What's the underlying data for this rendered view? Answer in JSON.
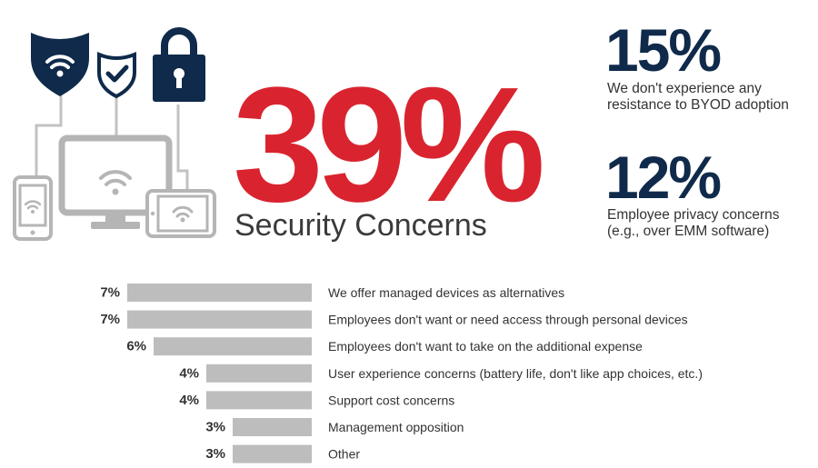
{
  "colors": {
    "accent_red": "#d9242f",
    "navy": "#0f2a4a",
    "device_gray": "#b5b5b5",
    "bar_gray": "#bdbdbd",
    "text_dark": "#333333"
  },
  "icons": {
    "wifi_shield": "wifi-shield-icon",
    "check_shield": "check-shield-icon",
    "padlock": "padlock-icon",
    "devices": "connected-devices-icon"
  },
  "headline": {
    "value": "39%",
    "label": "Security Concerns"
  },
  "side_stats": [
    {
      "value": "15%",
      "line1": "We don't experience any",
      "line2": "resistance to BYOD adoption"
    },
    {
      "value": "12%",
      "line1": "Employee privacy concerns",
      "line2": "(e.g., over EMM software)"
    }
  ],
  "chart_data": {
    "type": "bar",
    "orientation": "horizontal",
    "categories": [
      "We offer managed devices as alternatives",
      "Employees don't want or need access through personal devices",
      "Employees don't want to take on the additional expense",
      "User experience concerns (battery life, don't like app choices, etc.)",
      "Support cost concerns",
      "Management opposition",
      "Other"
    ],
    "values": [
      7,
      7,
      6,
      4,
      4,
      3,
      3
    ],
    "value_labels": [
      "7%",
      "7%",
      "6%",
      "4%",
      "4%",
      "3%",
      "3%"
    ],
    "unit": "%",
    "bars_right_aligned": true,
    "grid": false
  }
}
